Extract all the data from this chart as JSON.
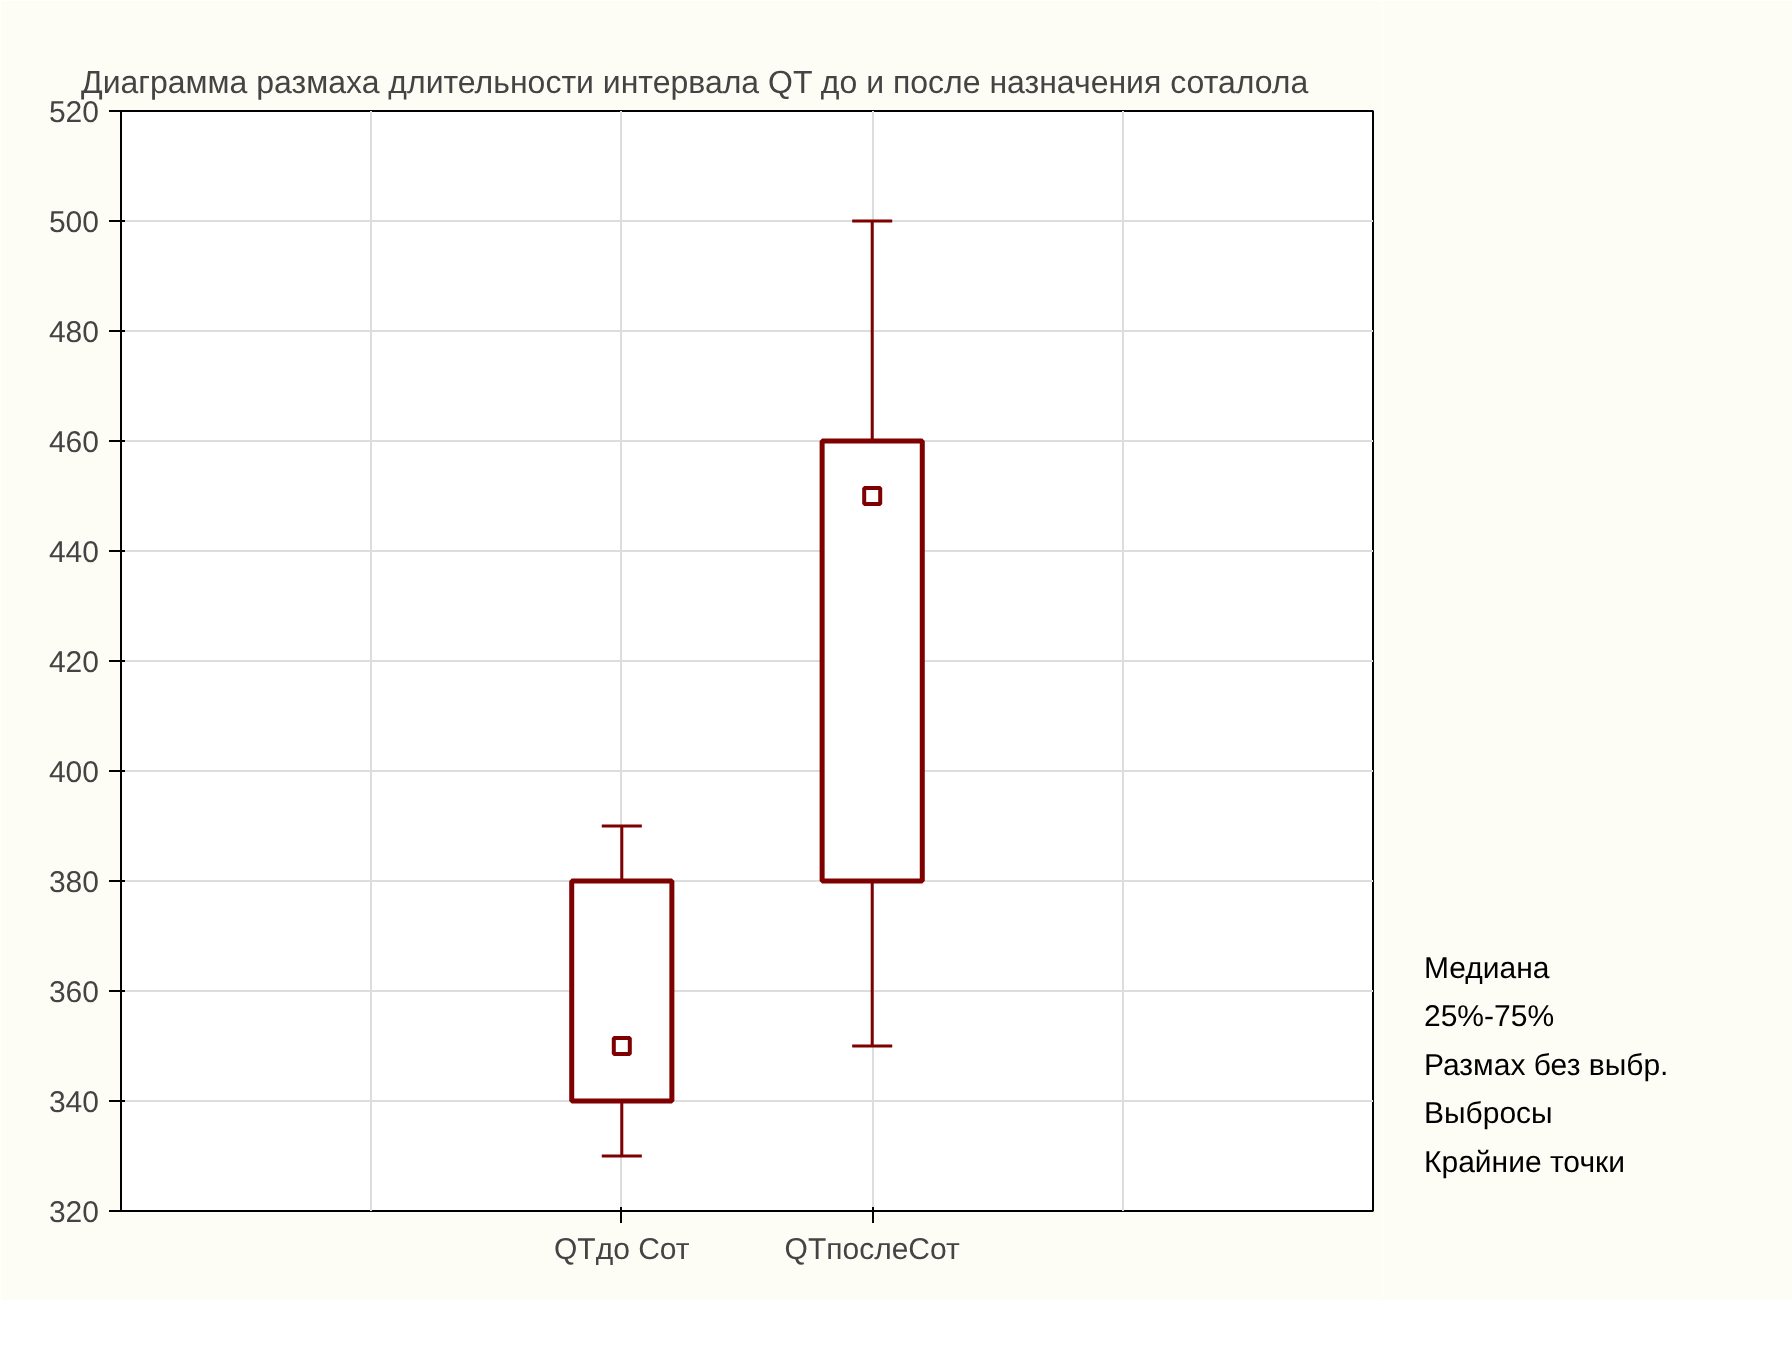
{
  "chart_data": {
    "type": "box",
    "title": "Диаграмма размаха длительности интервала QT до и после назначения соталола",
    "categories": [
      "QTдо Сот",
      "QTпослеСот"
    ],
    "boxes": [
      {
        "low": 330,
        "q1": 340,
        "median": 350,
        "q3": 380,
        "high": 390
      },
      {
        "low": 350,
        "q1": 380,
        "median": 450,
        "q3": 460,
        "high": 500
      }
    ],
    "color": "#7f0000",
    "ylim": [
      320,
      520
    ],
    "yticks": [
      320,
      340,
      360,
      380,
      400,
      420,
      440,
      460,
      480,
      500,
      520
    ],
    "grid": true,
    "annotations": [
      "Медиана",
      "25%-75%",
      "Размах без выбр.",
      "Выбросы",
      "Крайние точки"
    ]
  }
}
